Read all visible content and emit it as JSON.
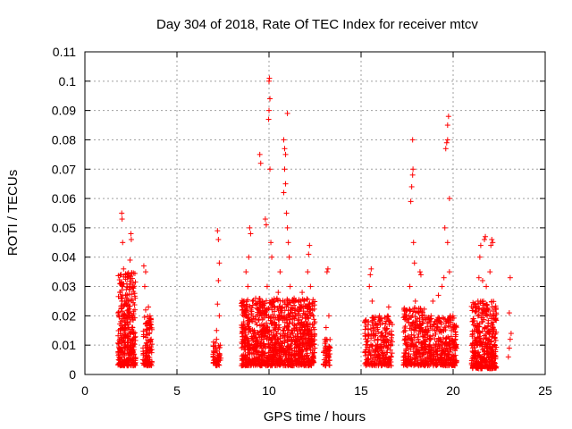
{
  "chart_data": {
    "type": "scatter",
    "title": "Day 304 of 2018, Rate Of TEC Index for receiver mtcv",
    "xlabel": "GPS time / hours",
    "ylabel": "ROTI / TECUs",
    "xlim": [
      0,
      25
    ],
    "ylim": [
      0,
      0.11
    ],
    "xticks": [
      0,
      5,
      10,
      15,
      20,
      25
    ],
    "xtick_labels": [
      "0",
      "5",
      "10",
      "15",
      "20",
      "25"
    ],
    "yticks": [
      0,
      0.01,
      0.02,
      0.03,
      0.04,
      0.05,
      0.06,
      0.07,
      0.08,
      0.09,
      0.1,
      0.11
    ],
    "ytick_labels": [
      "0",
      "0.01",
      "0.02",
      "0.03",
      "0.04",
      "0.05",
      "0.06",
      "0.07",
      "0.08",
      "0.09",
      "0.1",
      "0.11"
    ],
    "grid": true,
    "marker": "plus",
    "color": "#ff0000",
    "series": [
      {
        "points": [
          [
            1.85,
            0.006
          ],
          [
            1.9,
            0.012
          ],
          [
            1.95,
            0.018
          ],
          [
            2.0,
            0.025
          ],
          [
            2.05,
            0.03
          ],
          [
            2.1,
            0.036
          ],
          [
            2.0,
            0.055
          ],
          [
            2.02,
            0.053
          ],
          [
            2.05,
            0.045
          ],
          [
            2.1,
            0.02
          ],
          [
            2.15,
            0.015
          ],
          [
            2.2,
            0.009
          ],
          [
            2.25,
            0.005
          ],
          [
            2.3,
            0.013
          ],
          [
            2.35,
            0.022
          ],
          [
            2.4,
            0.03
          ],
          [
            2.45,
            0.039
          ],
          [
            2.5,
            0.048
          ],
          [
            2.52,
            0.046
          ],
          [
            2.55,
            0.02
          ],
          [
            2.6,
            0.012
          ],
          [
            2.65,
            0.007
          ],
          [
            1.9,
            0.028
          ],
          [
            2.1,
            0.004
          ],
          [
            2.3,
            0.033
          ],
          [
            2.45,
            0.018
          ],
          [
            2.2,
            0.027
          ],
          [
            1.95,
            0.009
          ],
          [
            2.5,
            0.01
          ],
          [
            2.35,
            0.016
          ],
          [
            3.2,
            0.037
          ],
          [
            3.25,
            0.03
          ],
          [
            3.3,
            0.022
          ],
          [
            3.35,
            0.015
          ],
          [
            3.4,
            0.01
          ],
          [
            3.45,
            0.006
          ],
          [
            3.5,
            0.004
          ],
          [
            3.55,
            0.008
          ],
          [
            3.6,
            0.012
          ],
          [
            3.5,
            0.019
          ],
          [
            3.3,
            0.035
          ],
          [
            3.45,
            0.023
          ],
          [
            3.6,
            0.017
          ],
          [
            7.05,
            0.005
          ],
          [
            7.1,
            0.008
          ],
          [
            7.15,
            0.012
          ],
          [
            7.2,
            0.024
          ],
          [
            7.25,
            0.032
          ],
          [
            7.3,
            0.038
          ],
          [
            7.2,
            0.049
          ],
          [
            7.25,
            0.046
          ],
          [
            7.3,
            0.02
          ],
          [
            7.35,
            0.01
          ],
          [
            7.15,
            0.015
          ],
          [
            7.3,
            0.007
          ],
          [
            8.6,
            0.005
          ],
          [
            8.7,
            0.01
          ],
          [
            8.8,
            0.02
          ],
          [
            8.85,
            0.03
          ],
          [
            8.9,
            0.04
          ],
          [
            8.95,
            0.05
          ],
          [
            9.0,
            0.048
          ],
          [
            8.75,
            0.035
          ],
          [
            9.1,
            0.025
          ],
          [
            9.2,
            0.015
          ],
          [
            9.3,
            0.008
          ],
          [
            9.4,
            0.004
          ],
          [
            9.5,
            0.075
          ],
          [
            9.55,
            0.072
          ],
          [
            9.6,
            0.02
          ],
          [
            9.7,
            0.012
          ],
          [
            9.8,
            0.053
          ],
          [
            9.85,
            0.051
          ],
          [
            9.9,
            0.03
          ],
          [
            10.0,
            0.1
          ],
          [
            10.02,
            0.101
          ],
          [
            10.05,
            0.094
          ],
          [
            10.0,
            0.09
          ],
          [
            9.98,
            0.087
          ],
          [
            10.05,
            0.07
          ],
          [
            10.1,
            0.045
          ],
          [
            10.15,
            0.04
          ],
          [
            9.9,
            0.022
          ],
          [
            10.2,
            0.018
          ],
          [
            10.25,
            0.01
          ],
          [
            10.3,
            0.006
          ],
          [
            10.4,
            0.014
          ],
          [
            10.5,
            0.028
          ],
          [
            10.6,
            0.035
          ],
          [
            10.8,
            0.08
          ],
          [
            10.85,
            0.077
          ],
          [
            10.9,
            0.075
          ],
          [
            10.85,
            0.07
          ],
          [
            10.9,
            0.065
          ],
          [
            10.8,
            0.062
          ],
          [
            10.95,
            0.055
          ],
          [
            11.0,
            0.05
          ],
          [
            11.05,
            0.045
          ],
          [
            11.1,
            0.04
          ],
          [
            11.0,
            0.089
          ],
          [
            11.15,
            0.03
          ],
          [
            11.2,
            0.022
          ],
          [
            11.3,
            0.015
          ],
          [
            11.4,
            0.008
          ],
          [
            11.5,
            0.004
          ],
          [
            11.6,
            0.01
          ],
          [
            11.7,
            0.02
          ],
          [
            11.8,
            0.028
          ],
          [
            11.9,
            0.025
          ],
          [
            12.0,
            0.018
          ],
          [
            12.1,
            0.035
          ],
          [
            12.15,
            0.041
          ],
          [
            12.2,
            0.044
          ],
          [
            12.25,
            0.03
          ],
          [
            12.3,
            0.012
          ],
          [
            12.35,
            0.007
          ],
          [
            12.4,
            0.02
          ],
          [
            10.7,
            0.02
          ],
          [
            10.5,
            0.012
          ],
          [
            9.6,
            0.009
          ],
          [
            11.3,
            0.025
          ],
          [
            12.05,
            0.009
          ],
          [
            13.0,
            0.005
          ],
          [
            13.05,
            0.009
          ],
          [
            13.1,
            0.012
          ],
          [
            13.15,
            0.035
          ],
          [
            13.2,
            0.036
          ],
          [
            13.25,
            0.02
          ],
          [
            13.3,
            0.007
          ],
          [
            13.1,
            0.016
          ],
          [
            13.2,
            0.004
          ],
          [
            15.3,
            0.005
          ],
          [
            15.35,
            0.01
          ],
          [
            15.4,
            0.018
          ],
          [
            15.45,
            0.03
          ],
          [
            15.5,
            0.034
          ],
          [
            15.55,
            0.036
          ],
          [
            15.6,
            0.025
          ],
          [
            15.7,
            0.015
          ],
          [
            15.8,
            0.008
          ],
          [
            15.9,
            0.012
          ],
          [
            16.0,
            0.02
          ],
          [
            16.1,
            0.014
          ],
          [
            16.2,
            0.007
          ],
          [
            16.3,
            0.005
          ],
          [
            16.4,
            0.012
          ],
          [
            16.45,
            0.02
          ],
          [
            16.5,
            0.023
          ],
          [
            16.55,
            0.018
          ],
          [
            16.6,
            0.01
          ],
          [
            17.4,
            0.005
          ],
          [
            17.5,
            0.01
          ],
          [
            17.6,
            0.02
          ],
          [
            17.65,
            0.03
          ],
          [
            17.7,
            0.059
          ],
          [
            17.75,
            0.064
          ],
          [
            17.8,
            0.068
          ],
          [
            17.82,
            0.07
          ],
          [
            17.8,
            0.08
          ],
          [
            17.85,
            0.045
          ],
          [
            17.9,
            0.038
          ],
          [
            17.95,
            0.025
          ],
          [
            18.0,
            0.015
          ],
          [
            18.05,
            0.008
          ],
          [
            18.1,
            0.012
          ],
          [
            18.2,
            0.035
          ],
          [
            18.25,
            0.034
          ],
          [
            18.3,
            0.02
          ],
          [
            18.6,
            0.006
          ],
          [
            18.7,
            0.01
          ],
          [
            18.8,
            0.02
          ],
          [
            18.9,
            0.025
          ],
          [
            19.0,
            0.015
          ],
          [
            19.1,
            0.008
          ],
          [
            19.2,
            0.005
          ],
          [
            19.3,
            0.012
          ],
          [
            19.4,
            0.03
          ],
          [
            19.5,
            0.033
          ],
          [
            19.55,
            0.05
          ],
          [
            19.6,
            0.077
          ],
          [
            19.65,
            0.079
          ],
          [
            19.7,
            0.08
          ],
          [
            19.75,
            0.088
          ],
          [
            19.7,
            0.085
          ],
          [
            19.8,
            0.06
          ],
          [
            19.7,
            0.045
          ],
          [
            19.8,
            0.035
          ],
          [
            19.85,
            0.02
          ],
          [
            19.9,
            0.013
          ],
          [
            20.0,
            0.01
          ],
          [
            20.05,
            0.006
          ],
          [
            20.1,
            0.004
          ],
          [
            19.5,
            0.019
          ],
          [
            19.2,
            0.027
          ],
          [
            20.0,
            0.017
          ],
          [
            21.1,
            0.004
          ],
          [
            21.2,
            0.008
          ],
          [
            21.3,
            0.015
          ],
          [
            21.35,
            0.025
          ],
          [
            21.4,
            0.033
          ],
          [
            21.45,
            0.04
          ],
          [
            21.5,
            0.044
          ],
          [
            21.6,
            0.032
          ],
          [
            21.65,
            0.025
          ],
          [
            21.7,
            0.046
          ],
          [
            21.75,
            0.047
          ],
          [
            21.8,
            0.03
          ],
          [
            21.85,
            0.02
          ],
          [
            21.9,
            0.012
          ],
          [
            21.95,
            0.006
          ],
          [
            22.0,
            0.035
          ],
          [
            22.05,
            0.044
          ],
          [
            22.1,
            0.046
          ],
          [
            22.15,
            0.045
          ],
          [
            22.2,
            0.02
          ],
          [
            22.25,
            0.01
          ],
          [
            21.5,
            0.002
          ],
          [
            21.6,
            0.018
          ],
          [
            22.0,
            0.009
          ],
          [
            23.0,
            0.006
          ],
          [
            23.05,
            0.009
          ],
          [
            23.1,
            0.012
          ],
          [
            23.15,
            0.014
          ],
          [
            23.05,
            0.021
          ],
          [
            23.1,
            0.033
          ]
        ]
      }
    ],
    "dense_bands": [
      {
        "x": [
          1.8,
          2.75
        ],
        "y": [
          0.003,
          0.035
        ],
        "n": 330
      },
      {
        "x": [
          3.15,
          3.65
        ],
        "y": [
          0.003,
          0.02
        ],
        "n": 110
      },
      {
        "x": [
          6.95,
          7.4
        ],
        "y": [
          0.003,
          0.012
        ],
        "n": 45
      },
      {
        "x": [
          8.5,
          12.5
        ],
        "y": [
          0.003,
          0.026
        ],
        "n": 1100
      },
      {
        "x": [
          12.95,
          13.35
        ],
        "y": [
          0.003,
          0.012
        ],
        "n": 45
      },
      {
        "x": [
          15.2,
          16.7
        ],
        "y": [
          0.003,
          0.02
        ],
        "n": 260
      },
      {
        "x": [
          17.3,
          18.5
        ],
        "y": [
          0.003,
          0.023
        ],
        "n": 260
      },
      {
        "x": [
          18.5,
          20.2
        ],
        "y": [
          0.003,
          0.02
        ],
        "n": 330
      },
      {
        "x": [
          21.0,
          22.35
        ],
        "y": [
          0.002,
          0.025
        ],
        "n": 380
      }
    ]
  }
}
